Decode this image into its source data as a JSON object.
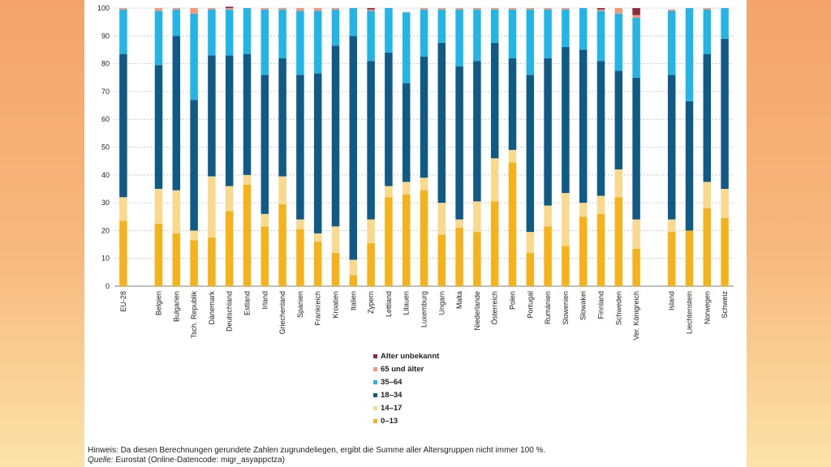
{
  "chart_data": {
    "type": "bar",
    "stacked": true,
    "title": "",
    "xlabel": "",
    "ylabel": "",
    "ylim": [
      0,
      100
    ],
    "yticks": [
      0,
      10,
      20,
      30,
      40,
      50,
      60,
      70,
      80,
      90,
      100
    ],
    "grid": true,
    "legend_position": "bottom-center",
    "categories": [
      "EU-28",
      "",
      "Belgien",
      "Bulgarien",
      "Tsch. Republik",
      "Dänemark",
      "Deutschland",
      "Estland",
      "Irland",
      "Griechenland",
      "Spanien",
      "Frankreich",
      "Kroatien",
      "Italien",
      "Zypern",
      "Lettland",
      "Litauen",
      "Luxemburg",
      "Ungarn",
      "Malta",
      "Niederlande",
      "Österreich",
      "Polen",
      "Portugal",
      "Rumänien",
      "Slowenien",
      "Slowakei",
      "Finnland",
      "Schweden",
      "Ver. Königreich",
      "",
      "Island",
      "Liechtenstein",
      "Norwegen",
      "Schweiz"
    ],
    "series": [
      {
        "name": "0–13",
        "color": "#f6b21b",
        "values": [
          23.5,
          null,
          22.5,
          19,
          16.5,
          17.5,
          27,
          36.5,
          21.5,
          29.5,
          20.5,
          16,
          12,
          4,
          15.5,
          32,
          33,
          34.5,
          18.5,
          21,
          19.5,
          30.5,
          44.5,
          12,
          21.5,
          14.5,
          25,
          26,
          32,
          13.5,
          null,
          19.5,
          20,
          28,
          24.5
        ]
      },
      {
        "name": "14–17",
        "color": "#f9d98c",
        "values": [
          8.5,
          null,
          12.5,
          15.5,
          3.5,
          22,
          9,
          3.5,
          4.5,
          10,
          3.5,
          3,
          9.5,
          5.5,
          8.5,
          4,
          4.5,
          4.5,
          11.5,
          3,
          11,
          15.5,
          4.5,
          7.5,
          7.5,
          19,
          5,
          6.5,
          10,
          10.5,
          null,
          4.5,
          0,
          9.5,
          10.5
        ]
      },
      {
        "name": "18–34",
        "color": "#0f5b85",
        "values": [
          51.5,
          null,
          44.5,
          55.5,
          47,
          43.5,
          47,
          43.5,
          50,
          42.5,
          52,
          57.5,
          65,
          80.5,
          57,
          48,
          35.5,
          43.5,
          57.5,
          55,
          50.5,
          41.5,
          33,
          56.5,
          53,
          52.5,
          55,
          48.5,
          35.5,
          51,
          null,
          52,
          46.5,
          46,
          54
        ]
      },
      {
        "name": "35–64",
        "color": "#23b5e6",
        "values": [
          16,
          null,
          19.5,
          9.5,
          31,
          16.5,
          16.5,
          16.5,
          23.5,
          17.5,
          23,
          22.5,
          13,
          10,
          18,
          16,
          25.5,
          17,
          12,
          20.5,
          18.5,
          12,
          17.5,
          23.5,
          17.5,
          13.5,
          15,
          18,
          20.5,
          21.5,
          null,
          23,
          33.5,
          16,
          11
        ]
      },
      {
        "name": "65 und älter",
        "color": "#f19a7a",
        "values": [
          0.5,
          null,
          1,
          0.5,
          2,
          0.5,
          0.5,
          0,
          0.5,
          0.5,
          1,
          1,
          0.5,
          0,
          0.5,
          0,
          0,
          0.5,
          0.5,
          0.5,
          0.5,
          0.5,
          0.5,
          0.5,
          0.5,
          0.5,
          0,
          0.5,
          2,
          1,
          null,
          0.5,
          0,
          0.5,
          0
        ]
      },
      {
        "name": "Alter unbekannt",
        "color": "#8c2d3c",
        "values": [
          0,
          null,
          0,
          0,
          0,
          0,
          0.5,
          0,
          0,
          0,
          0,
          0,
          0,
          0,
          0.5,
          0,
          0,
          0,
          0,
          0,
          0,
          0,
          0,
          0,
          0,
          0,
          0,
          0.5,
          0,
          2.5,
          null,
          0,
          0,
          0,
          0
        ]
      }
    ]
  },
  "footnote": {
    "hint": "Hinweis: Da diesen Berechnungen gerundete Zahlen zugrundeliegen, ergibt die Summe aller Altersgruppen nicht immer 100 %.",
    "source_label": "Quelle:",
    "source_text": " Eurostat (Online-Datencode: migr_asyappctza)"
  }
}
